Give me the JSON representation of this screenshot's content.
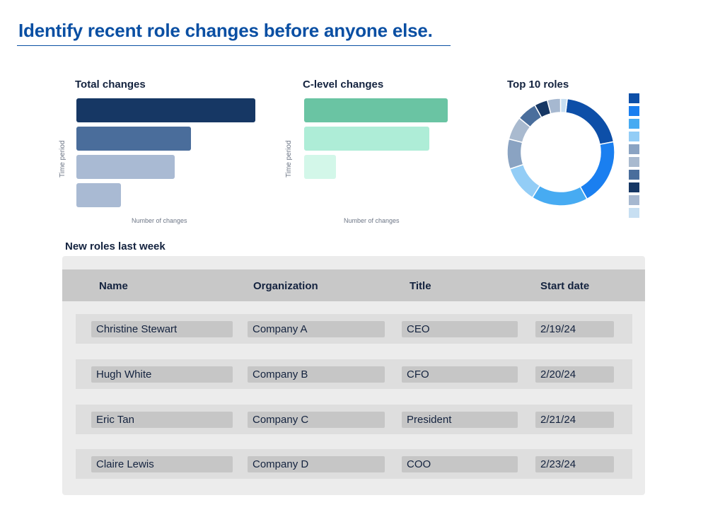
{
  "headline": "Identify recent role changes before anyone else.",
  "chart_data": [
    {
      "type": "bar",
      "orientation": "horizontal",
      "title": "Total changes",
      "xlabel": "Number of changes",
      "ylabel": "Time period",
      "values": [
        100,
        64,
        55,
        25
      ],
      "colors": [
        "#163764",
        "#4a6d9b",
        "#a9bad3",
        "#a9bad3"
      ],
      "grid": false
    },
    {
      "type": "bar",
      "orientation": "horizontal",
      "title": "C-level changes",
      "xlabel": "Number of changes",
      "ylabel": "Time period",
      "values": [
        100,
        87,
        22
      ],
      "colors": [
        "#6ac4a3",
        "#aeedd7",
        "#d3f7e9"
      ],
      "grid": false
    },
    {
      "type": "pie",
      "donut": true,
      "title": "Top 10 roles",
      "values": [
        20,
        20,
        17,
        11,
        9,
        7,
        6,
        4,
        4,
        2
      ],
      "colors": [
        "#0d4fa8",
        "#1a7ff0",
        "#47abf2",
        "#93cdf6",
        "#8aa3c2",
        "#a9bacf",
        "#4a6e9c",
        "#163764",
        "#a6b8d0",
        "#c7dff2"
      ],
      "legend": "right"
    }
  ],
  "table": {
    "title": "New roles last week",
    "columns": [
      "Name",
      "Organization",
      "Title",
      "Start date"
    ],
    "rows": [
      [
        "Christine Stewart",
        "Company A",
        "CEO",
        "2/19/24"
      ],
      [
        "Hugh White",
        "Company B",
        "CFO",
        "2/20/24"
      ],
      [
        "Eric Tan",
        "Company C",
        "President",
        "2/21/24"
      ],
      [
        "Claire Lewis",
        "Company D",
        "COO",
        "2/23/24"
      ]
    ]
  }
}
